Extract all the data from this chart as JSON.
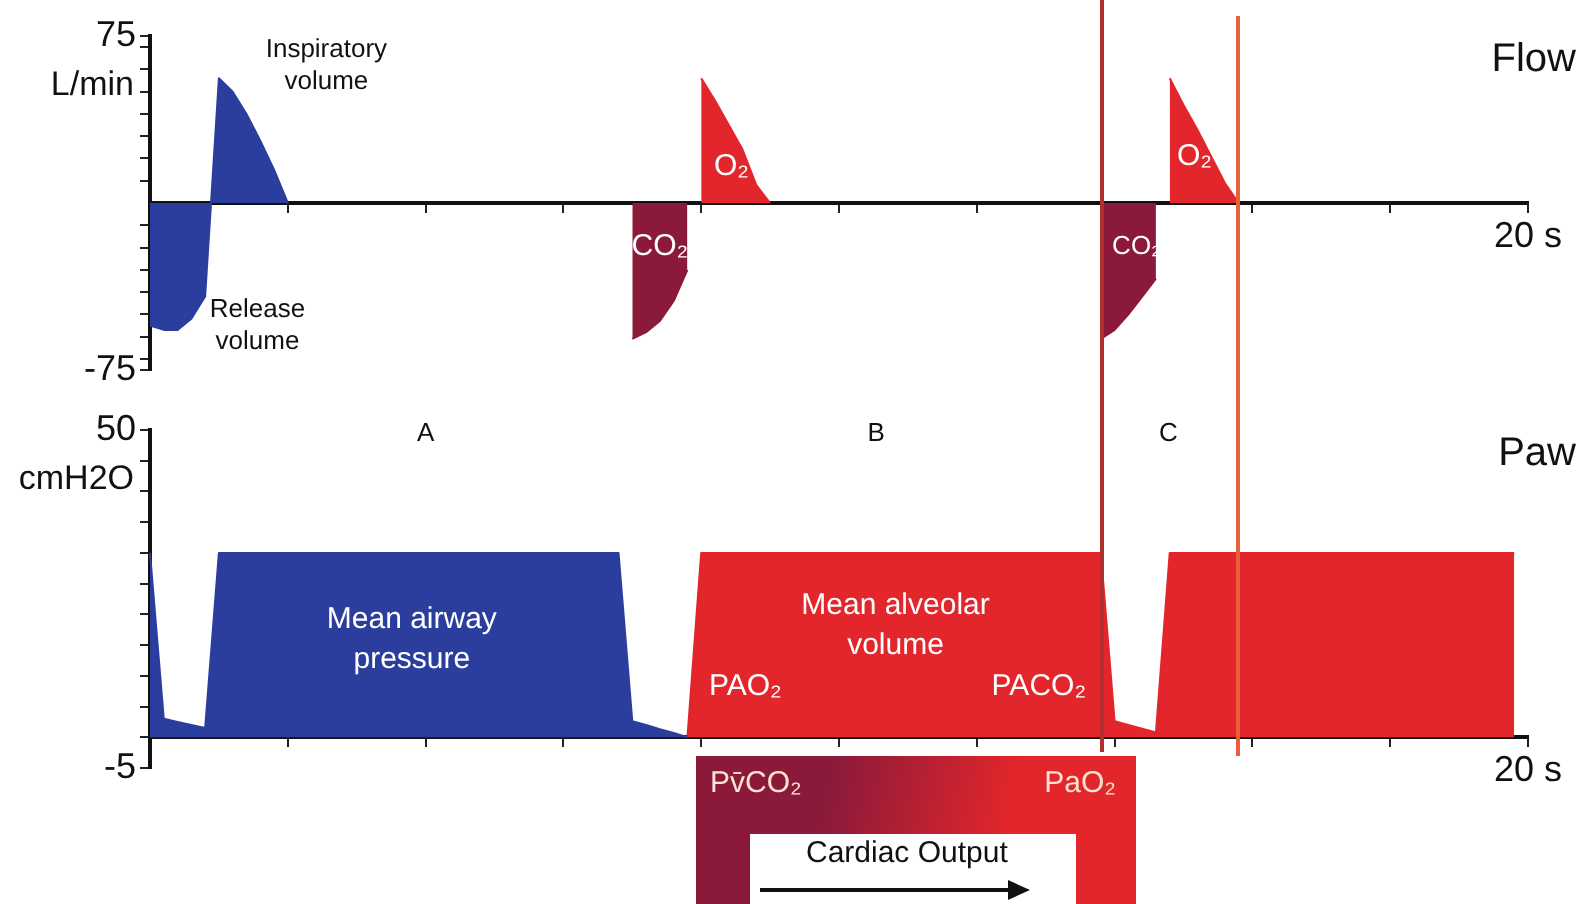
{
  "chart_data": [
    {
      "type": "area",
      "title": "Flow",
      "ylabel": "L/min",
      "ylim": [
        -75,
        75
      ],
      "categories": [
        null,
        null,
        null,
        null,
        null,
        null,
        null,
        null,
        null,
        null,
        null,
        null,
        null,
        null,
        null,
        null,
        null,
        null,
        null,
        null,
        null,
        null,
        null,
        null,
        null,
        null,
        null,
        null,
        null,
        null,
        null,
        null,
        null,
        null,
        null,
        null,
        null,
        null,
        null,
        null,
        null,
        null,
        null,
        null,
        null,
        null,
        null,
        null,
        null,
        null,
        null,
        null,
        null,
        null,
        null,
        null,
        null,
        null,
        null,
        null,
        null,
        null,
        null,
        null,
        null,
        null,
        null,
        null,
        null,
        null,
        null,
        null,
        null,
        null,
        null,
        null,
        null,
        null,
        null,
        null,
        null,
        null,
        null,
        null,
        null,
        null,
        null,
        null,
        null,
        null,
        null,
        null,
        null,
        null,
        null,
        null,
        null,
        null,
        null,
        null,
        "20 s"
      ],
      "yticks": [
        -75,
        {
          "value": -70,
          "label": null
        },
        {
          "value": -60,
          "label": null
        },
        {
          "value": -50,
          "label": null
        },
        {
          "value": -40,
          "label": null
        },
        {
          "value": -30,
          "label": null
        },
        {
          "value": -20,
          "label": null
        },
        {
          "value": -10,
          "label": null
        },
        {
          "value": 10,
          "label": null
        },
        {
          "value": 20,
          "label": null
        },
        {
          "value": 30,
          "label": null
        },
        {
          "value": 40,
          "label": null
        },
        {
          "value": 50,
          "label": null
        },
        {
          "value": 60,
          "label": null
        },
        {
          "value": 70,
          "label": null
        },
        75
      ],
      "series": [
        {
          "color": "#2b3e9e",
          "values": [
            -55,
            -57,
            -57,
            -52,
            -42,
            56,
            50,
            40,
            28,
            15,
            0,
            null,
            null,
            null,
            null,
            null,
            null,
            null,
            null,
            null,
            null,
            null,
            null,
            null,
            null,
            null,
            null,
            null,
            null,
            null,
            null,
            null,
            null,
            null,
            null,
            null,
            null,
            null,
            null,
            null,
            null,
            null,
            null,
            null,
            null,
            null,
            null,
            null,
            null,
            null,
            null,
            null,
            null,
            null,
            null,
            null,
            null,
            null,
            null,
            null,
            null,
            null,
            null,
            null,
            null,
            null,
            null,
            null,
            null,
            null,
            null,
            null,
            null,
            null,
            null,
            null,
            null,
            null,
            null,
            null,
            null,
            null,
            null,
            null,
            null,
            null,
            null,
            null,
            null,
            null,
            null,
            null,
            null,
            null,
            null,
            null,
            null,
            null,
            null,
            null,
            null
          ]
        },
        {
          "color": "#8b1a3a",
          "values": [
            null,
            null,
            null,
            null,
            null,
            null,
            null,
            null,
            null,
            null,
            null,
            null,
            null,
            null,
            null,
            null,
            null,
            null,
            null,
            null,
            null,
            null,
            null,
            null,
            null,
            null,
            null,
            null,
            null,
            null,
            null,
            null,
            null,
            null,
            null,
            -61,
            -58,
            -53,
            -44,
            -30,
            null,
            null,
            null,
            null,
            null,
            null,
            null,
            null,
            null,
            null,
            null,
            null,
            null,
            null,
            null,
            null,
            null,
            null,
            null,
            null,
            null,
            null,
            null,
            null,
            null,
            null,
            null,
            null,
            null,
            null,
            null,
            null,
            null,
            null,
            null,
            null,
            null,
            null,
            null,
            null,
            null,
            null,
            null,
            null,
            null,
            null,
            null,
            null,
            null,
            null,
            null,
            null,
            null,
            null,
            null,
            null,
            null,
            null,
            null,
            null,
            null
          ]
        },
        {
          "color": "#e3262b",
          "values": [
            null,
            null,
            null,
            null,
            null,
            null,
            null,
            null,
            null,
            null,
            null,
            null,
            null,
            null,
            null,
            null,
            null,
            null,
            null,
            null,
            null,
            null,
            null,
            null,
            null,
            null,
            null,
            null,
            null,
            null,
            null,
            null,
            null,
            null,
            null,
            null,
            null,
            null,
            null,
            null,
            56,
            46,
            35,
            24,
            8,
            0,
            null,
            null,
            null,
            null,
            null,
            null,
            null,
            null,
            null,
            null,
            null,
            null,
            null,
            null,
            null,
            null,
            null,
            null,
            null,
            null,
            null,
            null,
            null,
            null,
            null,
            null,
            null,
            null,
            null,
            null,
            null,
            null,
            null,
            null,
            null,
            null,
            null,
            null,
            null,
            null,
            null,
            null,
            null,
            null,
            null,
            null,
            null,
            null,
            null,
            null,
            null,
            null,
            null,
            null,
            null
          ]
        },
        {
          "color": "#8b1a3a",
          "values": [
            null,
            null,
            null,
            null,
            null,
            null,
            null,
            null,
            null,
            null,
            null,
            null,
            null,
            null,
            null,
            null,
            null,
            null,
            null,
            null,
            null,
            null,
            null,
            null,
            null,
            null,
            null,
            null,
            null,
            null,
            null,
            null,
            null,
            null,
            null,
            null,
            null,
            null,
            null,
            null,
            null,
            null,
            null,
            null,
            null,
            null,
            null,
            null,
            null,
            null,
            null,
            null,
            null,
            null,
            null,
            null,
            null,
            null,
            null,
            null,
            null,
            null,
            null,
            null,
            null,
            null,
            null,
            null,
            null,
            -61,
            -57,
            -50,
            -42,
            -34,
            null,
            null,
            null,
            null,
            null,
            null,
            null,
            null,
            null,
            null,
            null,
            null,
            null,
            null,
            null,
            null,
            null,
            null,
            null,
            null,
            null,
            null,
            null,
            null,
            null,
            null,
            null
          ]
        },
        {
          "color": "#e3262b",
          "values": [
            null,
            null,
            null,
            null,
            null,
            null,
            null,
            null,
            null,
            null,
            null,
            null,
            null,
            null,
            null,
            null,
            null,
            null,
            null,
            null,
            null,
            null,
            null,
            null,
            null,
            null,
            null,
            null,
            null,
            null,
            null,
            null,
            null,
            null,
            null,
            null,
            null,
            null,
            null,
            null,
            null,
            null,
            null,
            null,
            null,
            null,
            null,
            null,
            null,
            null,
            null,
            null,
            null,
            null,
            null,
            null,
            null,
            null,
            null,
            null,
            null,
            null,
            null,
            null,
            null,
            null,
            null,
            null,
            null,
            null,
            null,
            null,
            null,
            null,
            56,
            44,
            33,
            21,
            9,
            0,
            null,
            null,
            null,
            null,
            null,
            null,
            null,
            null,
            null,
            null,
            null,
            null,
            null,
            null,
            null,
            null,
            null,
            null,
            null,
            null,
            null
          ]
        }
      ],
      "annotations": [
        "Inspiratory volume",
        "Release volume",
        "CO₂",
        "O₂",
        "CO₂",
        "O₂"
      ]
    },
    {
      "type": "area",
      "title": "Paw",
      "ylabel": "cmH2O",
      "ylim": [
        -5,
        50
      ],
      "categories": [
        null,
        null,
        null,
        null,
        null,
        null,
        null,
        null,
        null,
        null,
        null,
        null,
        null,
        null,
        null,
        null,
        null,
        null,
        null,
        null,
        null,
        null,
        null,
        null,
        null,
        null,
        null,
        null,
        null,
        null,
        null,
        null,
        null,
        null,
        null,
        null,
        null,
        null,
        null,
        null,
        null,
        null,
        null,
        null,
        null,
        null,
        null,
        null,
        null,
        null,
        null,
        null,
        null,
        null,
        null,
        null,
        null,
        null,
        null,
        null,
        null,
        null,
        null,
        null,
        null,
        null,
        null,
        null,
        null,
        null,
        null,
        null,
        null,
        null,
        null,
        null,
        null,
        null,
        null,
        null,
        null,
        null,
        null,
        null,
        null,
        null,
        null,
        null,
        null,
        null,
        null,
        null,
        null,
        null,
        null,
        null,
        null,
        null,
        null,
        null,
        "20 s"
      ],
      "yticks": [
        -5,
        {
          "value": 0,
          "label": null
        },
        {
          "value": 5,
          "label": null
        },
        {
          "value": 10,
          "label": null
        },
        {
          "value": 15,
          "label": null
        },
        {
          "value": 20,
          "label": null
        },
        {
          "value": 25,
          "label": null
        },
        {
          "value": 30,
          "label": null
        },
        {
          "value": 35,
          "label": null
        },
        {
          "value": 40,
          "label": null
        },
        {
          "value": 45,
          "label": null
        },
        50
      ],
      "series": [
        {
          "color": "#2b3e9e",
          "values": [
            30,
            3,
            2.5,
            2,
            1.5,
            30,
            30,
            30,
            30,
            30,
            30,
            30,
            30,
            30,
            30,
            30,
            30,
            30,
            30,
            30,
            30,
            30,
            30,
            30,
            30,
            30,
            30,
            30,
            30,
            30,
            30,
            30,
            30,
            30,
            30,
            2.6,
            2,
            1.3,
            0.7,
            0,
            null,
            null,
            null,
            null,
            null,
            null,
            null,
            null,
            null,
            null,
            null,
            null,
            null,
            null,
            null,
            null,
            null,
            null,
            null,
            null,
            null,
            null,
            null,
            null,
            null,
            null,
            null,
            null,
            null,
            null,
            null,
            null,
            null,
            null,
            null,
            null,
            null,
            null,
            null,
            null,
            null,
            null,
            null,
            null,
            null,
            null,
            null,
            null,
            null,
            null,
            null,
            null,
            null,
            null,
            null,
            null,
            null,
            null,
            null,
            null,
            null
          ]
        },
        {
          "color": "#e3262b",
          "values": [
            null,
            null,
            null,
            null,
            null,
            null,
            null,
            null,
            null,
            null,
            null,
            null,
            null,
            null,
            null,
            null,
            null,
            null,
            null,
            null,
            null,
            null,
            null,
            null,
            null,
            null,
            null,
            null,
            null,
            null,
            null,
            null,
            null,
            null,
            null,
            null,
            null,
            null,
            null,
            0,
            30,
            30,
            30,
            30,
            30,
            30,
            30,
            30,
            30,
            30,
            30,
            30,
            30,
            30,
            30,
            30,
            30,
            30,
            30,
            30,
            30,
            30,
            30,
            30,
            30,
            30,
            30,
            30,
            30,
            30,
            2.6,
            2,
            1.4,
            0.8,
            30,
            30,
            30,
            30,
            30,
            30,
            30,
            30,
            30,
            30,
            30,
            30,
            30,
            30,
            30,
            30,
            30,
            30,
            30,
            30,
            30,
            30,
            30,
            30,
            30,
            30,
            null
          ]
        }
      ],
      "annotations": [
        "A",
        "B",
        "C",
        "Mean airway pressure",
        "Mean alveolar volume",
        "PAO₂",
        "PACO₂",
        "Pv̄CO₂",
        "PaO₂",
        "Cardiac Output"
      ]
    }
  ]
}
